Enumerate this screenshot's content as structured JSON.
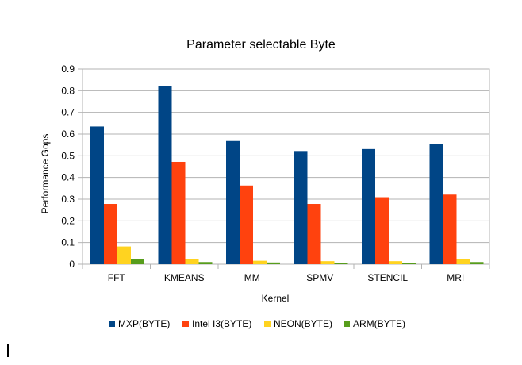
{
  "chart_data": {
    "type": "bar",
    "title": "Parameter selectable Byte",
    "xlabel": "Kernel",
    "ylabel": "Performance Gops",
    "ylim": [
      0,
      0.9
    ],
    "yticks": [
      "0",
      "0.1",
      "0.2",
      "0.3",
      "0.4",
      "0.5",
      "0.6",
      "0.7",
      "0.8",
      "0.9"
    ],
    "grid": true,
    "legend_position": "bottom",
    "categories": [
      "FFT",
      "KMEANS",
      "MM",
      "SPMV",
      "STENCIL",
      "MRI"
    ],
    "series": [
      {
        "name": "MXP(BYTE)",
        "color": "#004586",
        "values": [
          0.635,
          0.822,
          0.568,
          0.522,
          0.531,
          0.555
        ]
      },
      {
        "name": "Intel I3(BYTE)",
        "color": "#ff420e",
        "values": [
          0.278,
          0.472,
          0.363,
          0.278,
          0.309,
          0.321
        ]
      },
      {
        "name": "NEON(BYTE)",
        "color": "#ffd320",
        "values": [
          0.082,
          0.022,
          0.016,
          0.014,
          0.014,
          0.024
        ]
      },
      {
        "name": "ARM(BYTE)",
        "color": "#579d1c",
        "values": [
          0.022,
          0.01,
          0.008,
          0.007,
          0.007,
          0.01
        ]
      }
    ]
  }
}
